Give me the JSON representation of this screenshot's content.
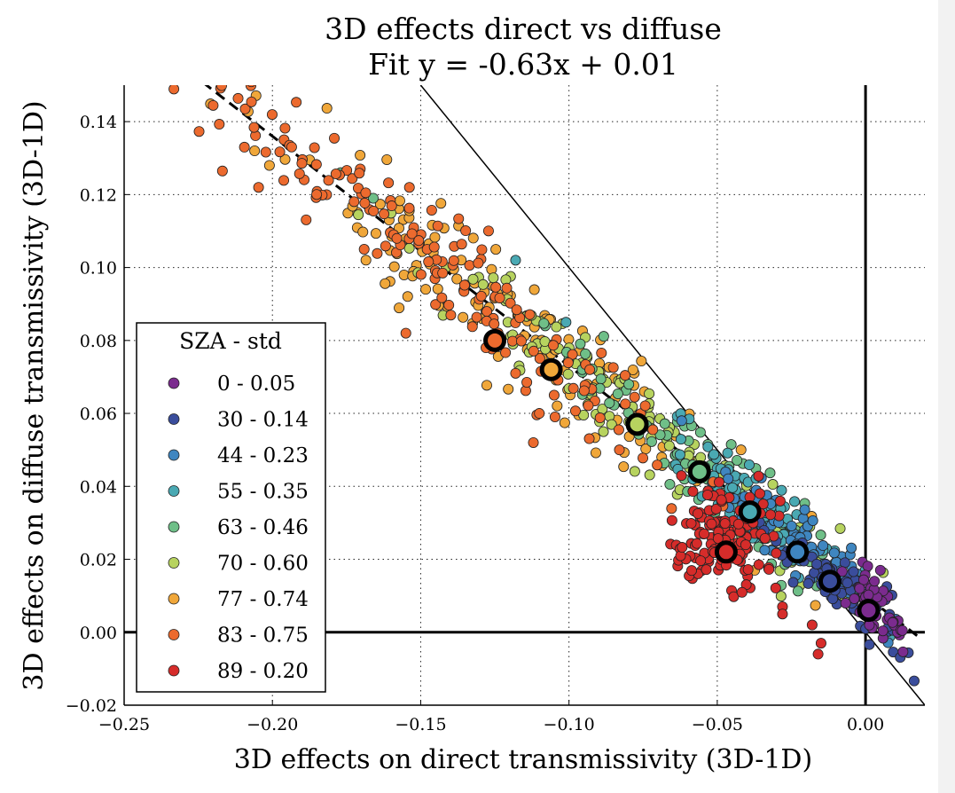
{
  "chart_data": {
    "type": "scatter",
    "title": "3D effects direct vs diffuse",
    "subtitle": "Fit y = -0.63x + 0.01",
    "xlabel": "3D effects on direct transmissivity (3D-1D)",
    "ylabel": "3D effects on diffuse transmissivity (3D-1D)",
    "xlim": [
      -0.25,
      0.02
    ],
    "ylim": [
      -0.02,
      0.15
    ],
    "xticks": [
      -0.25,
      -0.2,
      -0.15,
      -0.1,
      -0.05,
      0.0
    ],
    "xtick_labels": [
      "−0.25",
      "−0.20",
      "−0.15",
      "−0.10",
      "−0.05",
      "0.00"
    ],
    "yticks": [
      -0.02,
      0.0,
      0.02,
      0.04,
      0.06,
      0.08,
      0.1,
      0.12,
      0.14
    ],
    "ytick_labels": [
      "−0.02",
      "0.00",
      "0.02",
      "0.04",
      "0.06",
      "0.08",
      "0.10",
      "0.12",
      "0.14"
    ],
    "grid": true,
    "legend_title": "SZA - std",
    "legend_position": "lower-left",
    "fit_line": {
      "slope": -0.63,
      "intercept": 0.01,
      "x_range": [
        -0.228,
        0.018
      ]
    },
    "reference_line": {
      "slope": -1,
      "intercept": 0,
      "x_range": [
        -0.15,
        0.02
      ]
    },
    "series": [
      {
        "name": "0 - 0.05",
        "color": "#7b2b8e",
        "mean": [
          0.001,
          0.006
        ],
        "center": [
          0.003,
          0.009
        ],
        "spread": [
          0.005,
          0.004
        ],
        "count": 45,
        "fixed": [
          [
            0.005,
            0.017
          ],
          [
            0.003,
            0.014
          ],
          [
            -0.002,
            0.012
          ]
        ]
      },
      {
        "name": "30 - 0.14",
        "color": "#3a4d9c",
        "mean": [
          -0.012,
          0.014
        ],
        "center": [
          -0.008,
          0.0115
        ],
        "spread": [
          0.011,
          0.004
        ],
        "count": 70,
        "fixed": []
      },
      {
        "name": "44 - 0.23",
        "color": "#3f86c0",
        "mean": [
          -0.023,
          0.022
        ],
        "center": [
          -0.02,
          0.02
        ],
        "spread": [
          0.016,
          0.005
        ],
        "count": 85,
        "fixed": [
          [
            -0.062,
            0.058
          ]
        ]
      },
      {
        "name": "55 - 0.35",
        "color": "#4aa9b3",
        "mean": [
          -0.039,
          0.033
        ],
        "center": [
          -0.037,
          0.033
        ],
        "spread": [
          0.018,
          0.005
        ],
        "count": 95,
        "fixed": [
          [
            -0.101,
            0.085
          ],
          [
            -0.118,
            0.102
          ]
        ]
      },
      {
        "name": "63 - 0.46",
        "color": "#6fbf88",
        "mean": [
          -0.056,
          0.044
        ],
        "center": [
          -0.055,
          0.045
        ],
        "spread": [
          0.022,
          0.006
        ],
        "count": 100,
        "fixed": [
          [
            -0.177,
            0.126
          ],
          [
            -0.166,
            0.119
          ]
        ]
      },
      {
        "name": "70 - 0.60",
        "color": "#b7d35f",
        "mean": [
          -0.077,
          0.057
        ],
        "center": [
          -0.08,
          0.06
        ],
        "spread": [
          0.035,
          0.007
        ],
        "count": 120,
        "fixed": []
      },
      {
        "name": "77 - 0.74",
        "color": "#f0a73a",
        "mean": [
          -0.106,
          0.072
        ],
        "center": [
          -0.12,
          0.082
        ],
        "spread": [
          0.045,
          0.008
        ],
        "count": 150,
        "fixed": [
          [
            -0.206,
            0.132
          ],
          [
            -0.201,
            0.128
          ]
        ]
      },
      {
        "name": "83 - 0.75",
        "color": "#ec6a2e",
        "mean": [
          -0.125,
          0.08
        ],
        "center": [
          -0.15,
          0.097
        ],
        "spread": [
          0.045,
          0.008
        ],
        "count": 170,
        "fixed": [
          [
            -0.155,
            0.082
          ],
          [
            -0.112,
            0.052
          ],
          [
            -0.118,
            0.071
          ],
          [
            -0.128,
            0.078
          ],
          [
            -0.083,
            0.05
          ],
          [
            -0.093,
            0.072
          ],
          [
            -0.105,
            0.065
          ],
          [
            -0.11,
            0.06
          ]
        ]
      },
      {
        "name": "89 - 0.20",
        "color": "#d62c2a",
        "mean": [
          -0.047,
          0.022
        ],
        "center": [
          -0.048,
          0.026
        ],
        "spread": [
          0.008,
          0.007
        ],
        "count": 150,
        "fixed": [
          [
            -0.028,
            0.007
          ],
          [
            -0.018,
            0.002
          ],
          [
            -0.015,
            -0.003
          ],
          [
            -0.016,
            -0.006
          ],
          [
            -0.028,
            0.005
          ]
        ]
      }
    ]
  }
}
